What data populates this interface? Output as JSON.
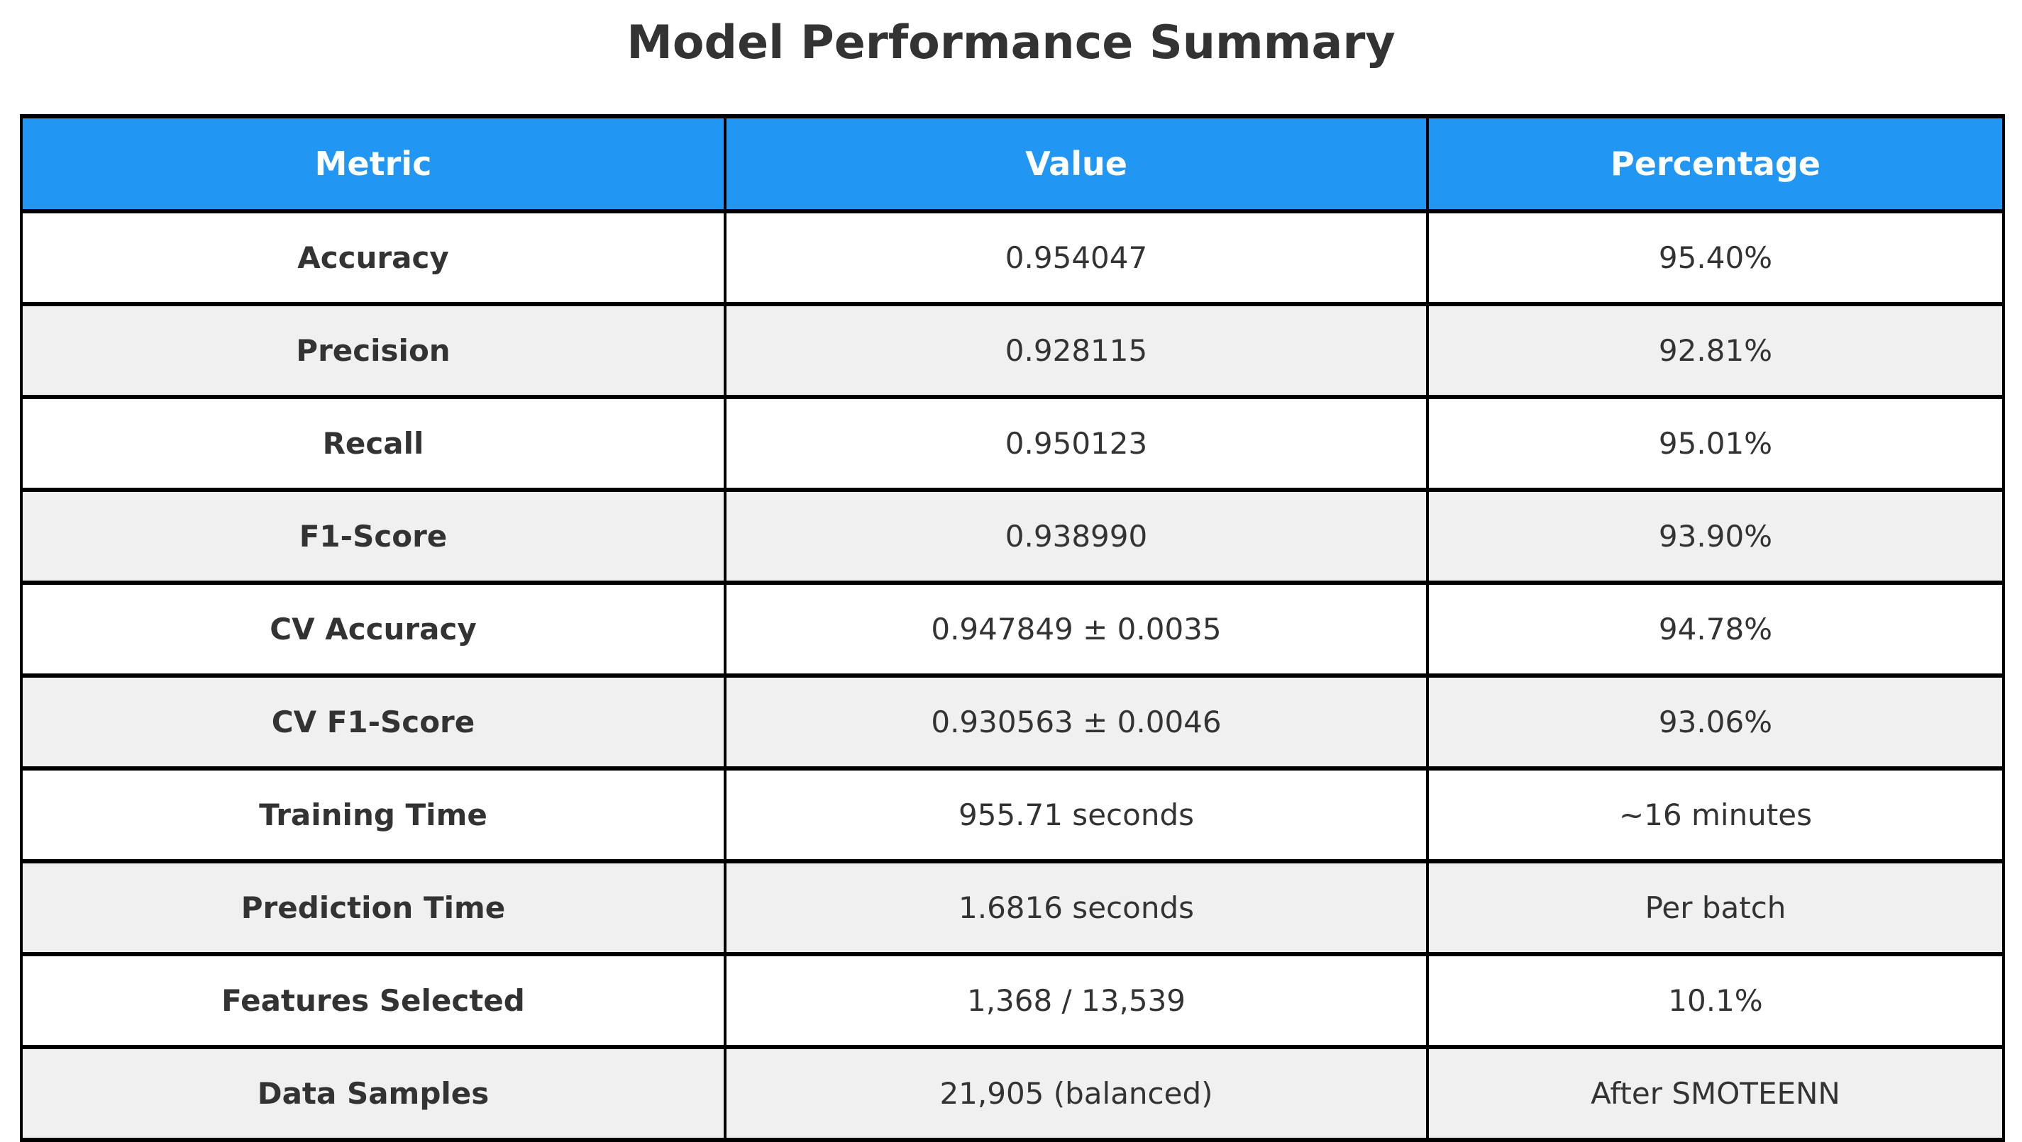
{
  "chart_data": {
    "type": "table",
    "title": "Model Performance Summary",
    "columns": [
      "Metric",
      "Value",
      "Percentage"
    ],
    "rows": [
      [
        "Accuracy",
        "0.954047",
        "95.40%"
      ],
      [
        "Precision",
        "0.928115",
        "92.81%"
      ],
      [
        "Recall",
        "0.950123",
        "95.01%"
      ],
      [
        "F1-Score",
        "0.938990",
        "93.90%"
      ],
      [
        "CV Accuracy",
        "0.947849 ± 0.0035",
        "94.78%"
      ],
      [
        "CV F1-Score",
        "0.930563 ± 0.0046",
        "93.06%"
      ],
      [
        "Training Time",
        "955.71 seconds",
        "~16 minutes"
      ],
      [
        "Prediction Time",
        "1.6816 seconds",
        "Per batch"
      ],
      [
        "Features Selected",
        "1,368 / 13,539",
        "10.1%"
      ],
      [
        "Data Samples",
        "21,905 (balanced)",
        "After SMOTEENN"
      ]
    ],
    "layout": {
      "header_position": "top",
      "row_striping": "alternate",
      "text_align": "center",
      "grid": "on"
    }
  },
  "colors": {
    "header_bg": "#2196F3",
    "header_text": "#ffffff",
    "row_bg": "#ffffff",
    "row_alt_bg": "#f0f0f0",
    "border": "#000000",
    "text": "#333333",
    "page_bg": "#ffffff"
  }
}
